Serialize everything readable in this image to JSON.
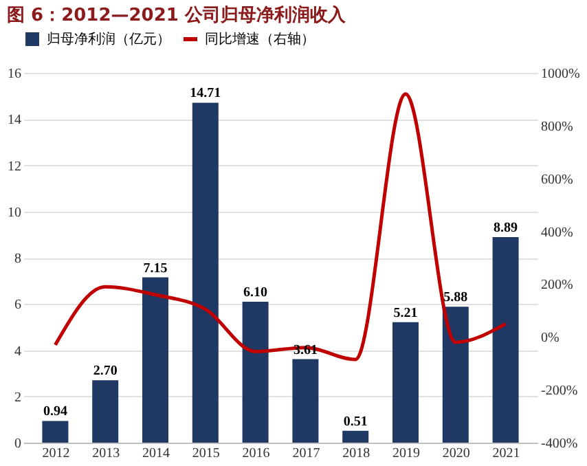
{
  "chart_data": {
    "type": "bar",
    "title": "图 6：2012—2021 公司归母净利润收入",
    "categories": [
      "2012",
      "2013",
      "2014",
      "2015",
      "2016",
      "2017",
      "2018",
      "2019",
      "2020",
      "2021"
    ],
    "series": [
      {
        "name": "归母净利润（亿元）",
        "color": "#203864",
        "values": [
          0.94,
          2.7,
          7.15,
          14.71,
          6.1,
          3.61,
          0.51,
          5.21,
          5.88,
          8.89
        ],
        "value_labels": [
          "0.94",
          "2.70",
          "7.15",
          "14.71",
          "6.10",
          "3.61",
          "0.51",
          "5.21",
          "5.88",
          "8.89"
        ]
      },
      {
        "name": "同比增速（右轴）",
        "type": "line",
        "axis": "y2",
        "color": "#c00000",
        "values": [
          -30,
          190,
          160,
          105,
          -55,
          -40,
          -85,
          920,
          -20,
          50
        ]
      }
    ],
    "ylim": [
      0,
      16
    ],
    "yticks": [
      0,
      2,
      4,
      6,
      8,
      10,
      12,
      14,
      16
    ],
    "y2lim": [
      -400,
      1000
    ],
    "y2ticks": [
      {
        "value": -400,
        "label": "-400%"
      },
      {
        "value": -200,
        "label": "-200%"
      },
      {
        "value": 0,
        "label": "0%"
      },
      {
        "value": 200,
        "label": "200%"
      },
      {
        "value": 400,
        "label": "400%"
      },
      {
        "value": 600,
        "label": "600%"
      },
      {
        "value": 800,
        "label": "800%"
      },
      {
        "value": 1000,
        "label": "1000%"
      }
    ],
    "grid": "y",
    "legend": "top",
    "marker": "none",
    "line_style": "solid"
  }
}
